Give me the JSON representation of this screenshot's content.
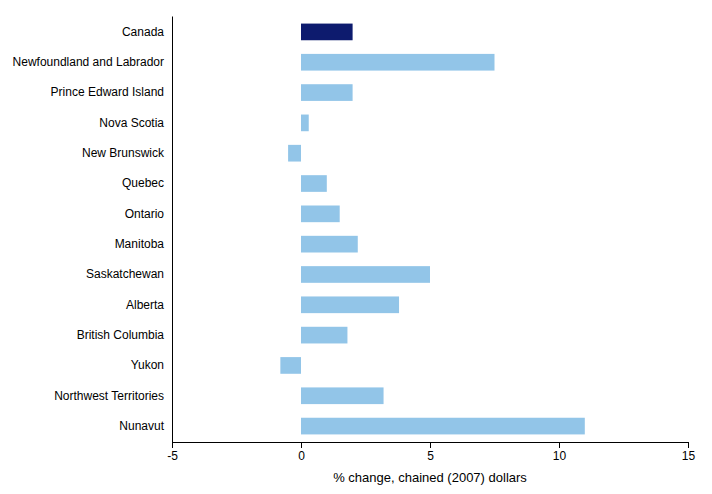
{
  "chart_data": {
    "type": "bar",
    "orientation": "horizontal",
    "categories": [
      "Canada",
      "Newfoundland and Labrador",
      "Prince Edward Island",
      "Nova Scotia",
      "New Brunswick",
      "Quebec",
      "Ontario",
      "Manitoba",
      "Saskatchewan",
      "Alberta",
      "British Columbia",
      "Yukon",
      "Northwest Territories",
      "Nunavut"
    ],
    "values": [
      2.0,
      7.5,
      2.0,
      0.3,
      -0.5,
      1.0,
      1.5,
      2.2,
      5.0,
      3.8,
      1.8,
      -0.8,
      3.2,
      11.0
    ],
    "colors": [
      "#0d1b6e",
      "#92c5e8",
      "#92c5e8",
      "#92c5e8",
      "#92c5e8",
      "#92c5e8",
      "#92c5e8",
      "#92c5e8",
      "#92c5e8",
      "#92c5e8",
      "#92c5e8",
      "#92c5e8",
      "#92c5e8",
      "#92c5e8"
    ],
    "xlabel": "% change, chained (2007) dollars",
    "xlim": [
      -5,
      15
    ],
    "xticks": [
      -5,
      0,
      5,
      10,
      15
    ],
    "grid": false
  }
}
